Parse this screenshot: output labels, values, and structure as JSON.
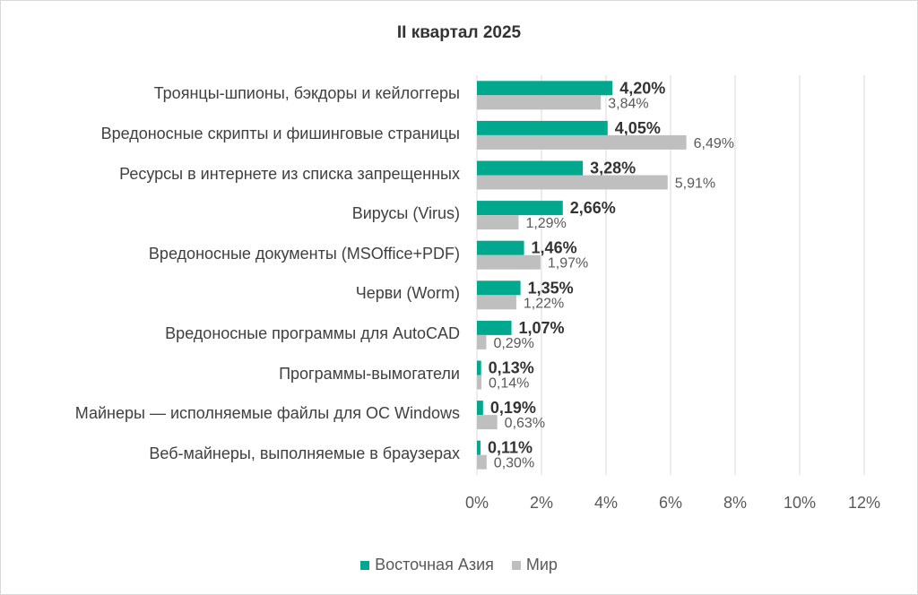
{
  "chart_data": {
    "type": "bar",
    "orientation": "horizontal",
    "title": "II квартал 2025",
    "categories": [
      "Троянцы-шпионы, бэкдоры и кейлоггеры",
      "Вредоносные скрипты и фишинговые страницы",
      "Ресурсы в интернете из списка запрещенных",
      "Вирусы (Virus)",
      "Вредоносные документы (MSOffice+PDF)",
      "Черви (Worm)",
      "Вредоносные программы для AutoCAD",
      "Программы-вымогатели",
      "Майнеры — исполняемые файлы для ОС Windows",
      "Веб-майнеры, выполняемые в браузерах"
    ],
    "series": [
      {
        "name": "Восточная Азия",
        "color": "#00a88e",
        "values": [
          4.2,
          4.05,
          3.28,
          2.66,
          1.46,
          1.35,
          1.07,
          0.13,
          0.19,
          0.11
        ],
        "labels": [
          "4,20%",
          "4,05%",
          "3,28%",
          "2,66%",
          "1,46%",
          "1,35%",
          "1,07%",
          "0,13%",
          "0,19%",
          "0,11%"
        ]
      },
      {
        "name": "Мир",
        "color": "#bfbfbf",
        "values": [
          3.84,
          6.49,
          5.91,
          1.29,
          1.97,
          1.22,
          0.29,
          0.14,
          0.63,
          0.3
        ],
        "labels": [
          "3,84%",
          "6,49%",
          "5,91%",
          "1,29%",
          "1,97%",
          "1,22%",
          "0,29%",
          "0,14%",
          "0,63%",
          "0,30%"
        ]
      }
    ],
    "xlim": [
      0,
      12
    ],
    "xticks": [
      0,
      2,
      4,
      6,
      8,
      10,
      12
    ],
    "xtick_labels": [
      "0%",
      "2%",
      "4%",
      "6%",
      "8%",
      "10%",
      "12%"
    ],
    "grid": true,
    "legend": "bottom"
  }
}
